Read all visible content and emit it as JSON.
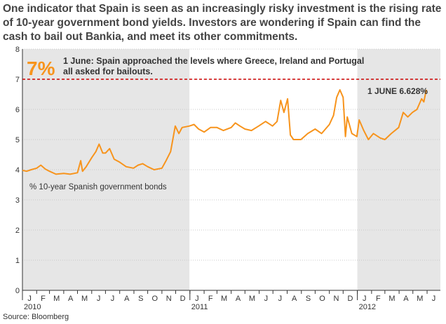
{
  "headline": "One indicator that Spain is seen as an increasingly risky investment is the rising rate of 10-year government bond yields. Investors are wondering if Spain can find the cash to bail out Bankia, and meet its other commitments.",
  "source": "Source: Bloomberg",
  "colors": {
    "line": "#f7941d",
    "shade": "#e6e6e6",
    "threshold": "#cc0000",
    "big_pct": "#f7941d"
  },
  "chart_data": {
    "type": "line",
    "title": "",
    "ylabel": "% 10-year Spanish government bonds",
    "ylim": [
      0,
      8
    ],
    "y_ticks": [
      0,
      1,
      2,
      3,
      4,
      5,
      6,
      7,
      8
    ],
    "x_range": [
      "2010-01-01",
      "2012-06-30"
    ],
    "month_labels": [
      "J",
      "F",
      "M",
      "A",
      "M",
      "J",
      "J",
      "A",
      "S",
      "O",
      "N",
      "D",
      "J",
      "F",
      "M",
      "A",
      "M",
      "J",
      "J",
      "A",
      "S",
      "O",
      "N",
      "D",
      "J",
      "F",
      "M",
      "A",
      "M",
      "J"
    ],
    "year_labels": [
      {
        "label": "2010",
        "date": "2010-01-01"
      },
      {
        "label": "2011",
        "date": "2011-01-01"
      },
      {
        "label": "2012",
        "date": "2012-01-01"
      }
    ],
    "shaded_periods": [
      [
        "2010-01-01",
        "2010-12-31"
      ],
      [
        "2012-01-01",
        "2012-06-30"
      ]
    ],
    "grid": true,
    "threshold": {
      "value": 7
    },
    "annotation": {
      "big": "7%",
      "text": "1 June: Spain approached the levels where Greece, Ireland and Portugal all asked for bailouts.",
      "lines": [
        "1 June: Spain approached the levels where Greece, Ireland and Portugal",
        "all asked for bailouts."
      ]
    },
    "end_label": "1 JUNE 6.628%",
    "series": [
      {
        "name": "",
        "points": [
          [
            "2010-01-01",
            3.98
          ],
          [
            "2010-01-10",
            3.95
          ],
          [
            "2010-01-20",
            4.0
          ],
          [
            "2010-02-01",
            4.05
          ],
          [
            "2010-02-10",
            4.15
          ],
          [
            "2010-02-20",
            4.02
          ],
          [
            "2010-03-01",
            3.95
          ],
          [
            "2010-03-15",
            3.85
          ],
          [
            "2010-04-01",
            3.88
          ],
          [
            "2010-04-15",
            3.85
          ],
          [
            "2010-05-01",
            3.9
          ],
          [
            "2010-05-08",
            4.3
          ],
          [
            "2010-05-12",
            3.95
          ],
          [
            "2010-05-20",
            4.1
          ],
          [
            "2010-06-01",
            4.4
          ],
          [
            "2010-06-10",
            4.6
          ],
          [
            "2010-06-17",
            4.85
          ],
          [
            "2010-06-25",
            4.55
          ],
          [
            "2010-07-01",
            4.55
          ],
          [
            "2010-07-10",
            4.7
          ],
          [
            "2010-07-20",
            4.35
          ],
          [
            "2010-08-01",
            4.25
          ],
          [
            "2010-08-15",
            4.1
          ],
          [
            "2010-08-31",
            4.05
          ],
          [
            "2010-09-10",
            4.15
          ],
          [
            "2010-09-20",
            4.2
          ],
          [
            "2010-10-01",
            4.1
          ],
          [
            "2010-10-15",
            4.0
          ],
          [
            "2010-11-01",
            4.05
          ],
          [
            "2010-11-10",
            4.3
          ],
          [
            "2010-11-20",
            4.6
          ],
          [
            "2010-11-30",
            5.45
          ],
          [
            "2010-12-08",
            5.2
          ],
          [
            "2010-12-15",
            5.4
          ],
          [
            "2010-12-31",
            5.45
          ],
          [
            "2011-01-10",
            5.5
          ],
          [
            "2011-01-20",
            5.35
          ],
          [
            "2011-02-01",
            5.25
          ],
          [
            "2011-02-15",
            5.4
          ],
          [
            "2011-03-01",
            5.4
          ],
          [
            "2011-03-15",
            5.3
          ],
          [
            "2011-04-01",
            5.4
          ],
          [
            "2011-04-10",
            5.55
          ],
          [
            "2011-04-20",
            5.45
          ],
          [
            "2011-05-01",
            5.35
          ],
          [
            "2011-05-15",
            5.3
          ],
          [
            "2011-05-31",
            5.45
          ],
          [
            "2011-06-15",
            5.6
          ],
          [
            "2011-06-30",
            5.45
          ],
          [
            "2011-07-10",
            5.6
          ],
          [
            "2011-07-18",
            6.3
          ],
          [
            "2011-07-25",
            5.9
          ],
          [
            "2011-08-02",
            6.35
          ],
          [
            "2011-08-08",
            5.15
          ],
          [
            "2011-08-15",
            5.0
          ],
          [
            "2011-08-31",
            5.0
          ],
          [
            "2011-09-15",
            5.2
          ],
          [
            "2011-10-01",
            5.35
          ],
          [
            "2011-10-15",
            5.2
          ],
          [
            "2011-11-01",
            5.5
          ],
          [
            "2011-11-10",
            5.8
          ],
          [
            "2011-11-17",
            6.4
          ],
          [
            "2011-11-24",
            6.65
          ],
          [
            "2011-12-01",
            6.4
          ],
          [
            "2011-12-06",
            5.1
          ],
          [
            "2011-12-10",
            5.75
          ],
          [
            "2011-12-20",
            5.2
          ],
          [
            "2011-12-31",
            5.1
          ],
          [
            "2012-01-05",
            5.65
          ],
          [
            "2012-01-15",
            5.3
          ],
          [
            "2012-01-25",
            5.0
          ],
          [
            "2012-02-05",
            5.2
          ],
          [
            "2012-02-20",
            5.05
          ],
          [
            "2012-03-01",
            5.0
          ],
          [
            "2012-03-15",
            5.2
          ],
          [
            "2012-03-31",
            5.4
          ],
          [
            "2012-04-10",
            5.9
          ],
          [
            "2012-04-20",
            5.75
          ],
          [
            "2012-04-30",
            5.9
          ],
          [
            "2012-05-10",
            6.0
          ],
          [
            "2012-05-20",
            6.35
          ],
          [
            "2012-05-25",
            6.25
          ],
          [
            "2012-05-30",
            6.63
          ],
          [
            "2012-06-01",
            6.628
          ]
        ]
      }
    ]
  }
}
